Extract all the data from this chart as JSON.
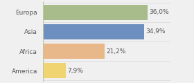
{
  "categories": [
    "Europa",
    "Asia",
    "Africa",
    "America"
  ],
  "values": [
    36.0,
    34.9,
    21.2,
    7.9
  ],
  "labels": [
    "36,0%",
    "34,9%",
    "21,2%",
    "7,9%"
  ],
  "bar_colors": [
    "#a8bb8a",
    "#6d8fbf",
    "#e8b88a",
    "#f0d472"
  ],
  "background_color": "#f0f0f0",
  "bar_bg_color": "#ffffff",
  "xlim": [
    0,
    44
  ],
  "bar_height": 0.78,
  "label_fontsize": 6.5,
  "cat_fontsize": 6.5,
  "border_color": "#c8d4a0"
}
